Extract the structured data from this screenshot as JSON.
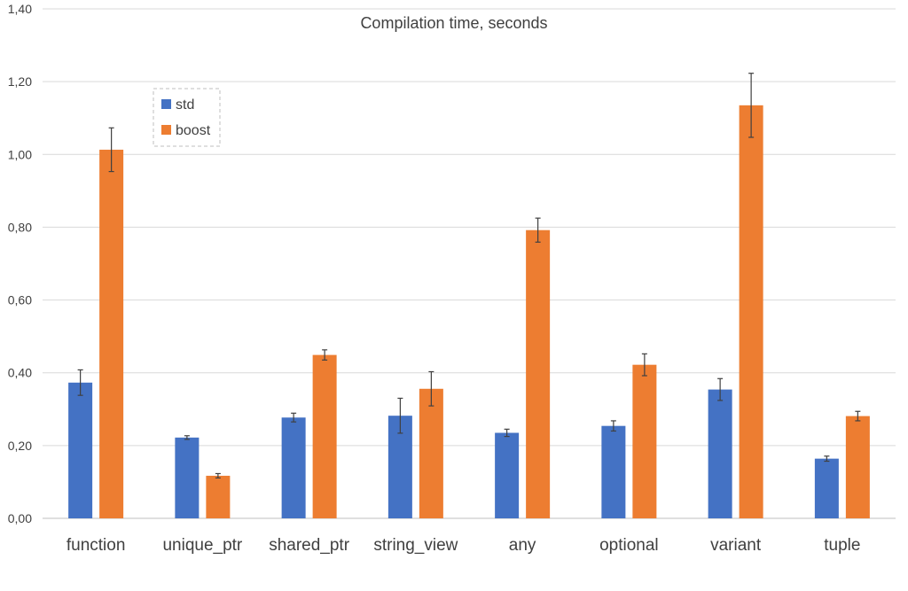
{
  "chart_data": {
    "type": "bar",
    "title": "Compilation time, seconds",
    "xlabel": "",
    "ylabel": "",
    "ylim": [
      0,
      1.4
    ],
    "yticks": [
      "0,00",
      "0,20",
      "0,40",
      "0,60",
      "0,80",
      "1,00",
      "1,20",
      "1,40"
    ],
    "grid": true,
    "legend_position": "top-left",
    "categories": [
      "function",
      "unique_ptr",
      "shared_ptr",
      "string_view",
      "any",
      "optional",
      "variant",
      "tuple"
    ],
    "series": [
      {
        "name": "std",
        "color": "#4472c4",
        "values": [
          0.373,
          0.222,
          0.277,
          0.282,
          0.235,
          0.254,
          0.354,
          0.164
        ],
        "errors": [
          0.035,
          0.005,
          0.012,
          0.048,
          0.01,
          0.014,
          0.03,
          0.007
        ]
      },
      {
        "name": "boost",
        "color": "#ed7d31",
        "values": [
          1.013,
          0.117,
          0.449,
          0.356,
          0.792,
          0.422,
          1.135,
          0.281
        ],
        "errors": [
          0.06,
          0.006,
          0.014,
          0.047,
          0.033,
          0.03,
          0.088,
          0.013
        ]
      }
    ]
  }
}
